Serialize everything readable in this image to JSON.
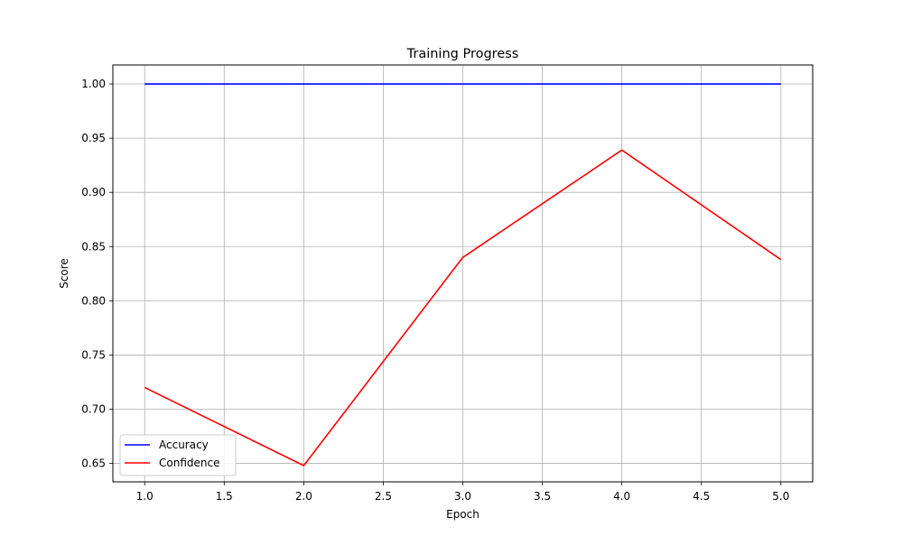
{
  "chart_data": {
    "type": "line",
    "title": "Training Progress",
    "xlabel": "Epoch",
    "ylabel": "Score",
    "x": [
      1,
      2,
      3,
      4,
      5
    ],
    "xlim": [
      0.8,
      5.2
    ],
    "ylim": [
      0.633,
      1.0175
    ],
    "xticks": [
      1.0,
      1.5,
      2.0,
      2.5,
      3.0,
      3.5,
      4.0,
      4.5,
      5.0
    ],
    "xtick_labels": [
      "1.0",
      "1.5",
      "2.0",
      "2.5",
      "3.0",
      "3.5",
      "4.0",
      "4.5",
      "5.0"
    ],
    "yticks": [
      0.65,
      0.7,
      0.75,
      0.8,
      0.85,
      0.9,
      0.95,
      1.0
    ],
    "ytick_labels": [
      "0.65",
      "0.70",
      "0.75",
      "0.80",
      "0.85",
      "0.90",
      "0.95",
      "1.00"
    ],
    "grid": true,
    "legend_position": "lower-left",
    "series": [
      {
        "name": "Accuracy",
        "color": "#0000ff",
        "values": [
          1.0,
          1.0,
          1.0,
          1.0,
          1.0
        ]
      },
      {
        "name": "Confidence",
        "color": "#ff0000",
        "values": [
          0.72,
          0.648,
          0.84,
          0.939,
          0.838
        ]
      }
    ]
  }
}
